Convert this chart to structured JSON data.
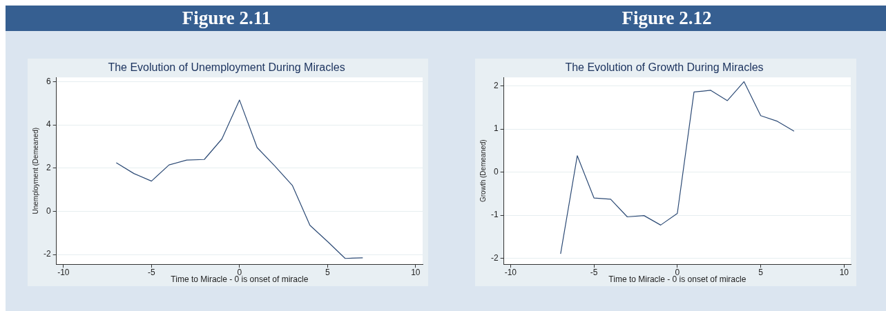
{
  "chart_data": [
    {
      "type": "line",
      "subtitle": "Figure 2.11",
      "title": "The Evolution of Unemployment During Miracles",
      "xlabel": "Time to Miracle - 0 is onset of miracle",
      "ylabel": "Unemployment (Demeaned)",
      "x": [
        -7,
        -6,
        -5,
        -4,
        -3,
        -2,
        -1,
        0,
        1,
        2,
        3,
        4,
        5,
        6,
        7
      ],
      "series": [
        {
          "color": "#2c4a75",
          "values": [
            2.25,
            1.75,
            1.4,
            2.15,
            2.37,
            2.4,
            3.35,
            5.15,
            2.95,
            2.1,
            1.2,
            -0.65,
            -1.4,
            -2.18,
            -2.15
          ]
        }
      ],
      "xlim": [
        -10.4,
        10.4
      ],
      "xticks": [
        -10,
        -5,
        0,
        5,
        10
      ],
      "ylim": [
        -2.45,
        6.2
      ],
      "yticks": [
        -2,
        0,
        2,
        4,
        6
      ],
      "grid": "y",
      "legend": false,
      "marker": "none",
      "line_style": "solid"
    },
    {
      "type": "line",
      "subtitle": "Figure 2.12",
      "title": "The Evolution of Growth During Miracles",
      "xlabel": "Time to Miracle - 0 is onset of miracle",
      "ylabel": "Growth (Demeaned)",
      "x": [
        -7,
        -6,
        -5,
        -4,
        -3,
        -2,
        -1,
        0,
        1,
        2,
        3,
        4,
        5,
        6,
        7
      ],
      "series": [
        {
          "color": "#2c4a75",
          "values": [
            -1.9,
            0.38,
            -0.6,
            -0.63,
            -1.04,
            -1.01,
            -1.23,
            -0.96,
            1.86,
            1.9,
            1.66,
            2.1,
            1.31,
            1.18,
            0.95
          ]
        }
      ],
      "xlim": [
        -10.4,
        10.4
      ],
      "xticks": [
        -10,
        -5,
        0,
        5,
        10
      ],
      "ylim": [
        -2.14,
        2.2
      ],
      "yticks": [
        -2,
        -1,
        0,
        1,
        2
      ],
      "grid": "y",
      "legend": false,
      "marker": "none",
      "line_style": "solid"
    }
  ]
}
